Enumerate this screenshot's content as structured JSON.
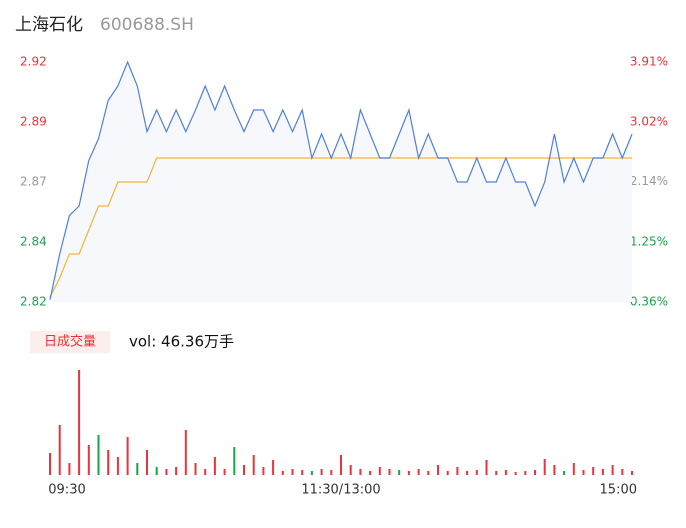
{
  "chart_data": [
    {
      "type": "line",
      "title": "上海石化",
      "subtitle": "600688.SH",
      "x": [
        0,
        4,
        8,
        12,
        16,
        20,
        24,
        28,
        32,
        36,
        40,
        44,
        48,
        52,
        56,
        60,
        64,
        68,
        72,
        76,
        80,
        84,
        88,
        92,
        96,
        100,
        104,
        108,
        112,
        116,
        120,
        124,
        128,
        132,
        136,
        140,
        144,
        148,
        152,
        156,
        160,
        164,
        168,
        172,
        176,
        180,
        184,
        188,
        192,
        196,
        200,
        204,
        208,
        212,
        216,
        220,
        224,
        228,
        232,
        236,
        240
      ],
      "xlim": [
        0,
        240
      ],
      "series": [
        {
          "name": "price",
          "color": "#4f7fe0",
          "values": [
            2.821,
            2.84,
            2.856,
            2.86,
            2.879,
            2.888,
            2.904,
            2.91,
            2.92,
            2.91,
            2.891,
            2.9,
            2.891,
            2.9,
            2.891,
            2.9,
            2.91,
            2.9,
            2.91,
            2.9,
            2.891,
            2.9,
            2.9,
            2.891,
            2.9,
            2.891,
            2.9,
            2.88,
            2.89,
            2.88,
            2.89,
            2.88,
            2.9,
            2.89,
            2.88,
            2.88,
            2.89,
            2.9,
            2.88,
            2.89,
            2.88,
            2.88,
            2.87,
            2.87,
            2.88,
            2.87,
            2.87,
            2.88,
            2.87,
            2.87,
            2.86,
            2.87,
            2.89,
            2.87,
            2.88,
            2.87,
            2.88,
            2.88,
            2.89,
            2.88,
            2.89
          ]
        },
        {
          "name": "average",
          "color": "#f2b53a",
          "values": [
            2.822,
            2.83,
            2.84,
            2.84,
            2.85,
            2.86,
            2.86,
            2.87,
            2.87,
            2.87,
            2.87,
            2.88,
            2.88,
            2.88,
            2.88,
            2.88,
            2.88,
            2.88,
            2.88,
            2.88,
            2.88,
            2.88,
            2.88,
            2.88,
            2.88,
            2.88,
            2.88,
            2.88,
            2.88,
            2.88,
            2.88,
            2.88,
            2.88,
            2.88,
            2.88,
            2.88,
            2.88,
            2.88,
            2.88,
            2.88,
            2.88,
            2.88,
            2.88,
            2.88,
            2.88,
            2.88,
            2.88,
            2.88,
            2.88,
            2.88,
            2.88,
            2.88,
            2.88,
            2.88,
            2.88,
            2.88,
            2.88,
            2.88,
            2.88,
            2.88,
            2.88
          ]
        }
      ],
      "ylim": [
        2.82,
        2.92
      ],
      "yticks": [
        {
          "value": 2.92,
          "label": "2.92"
        },
        {
          "value": 2.895,
          "label": "2.89"
        },
        {
          "value": 2.87,
          "label": "2.87"
        },
        {
          "value": 2.845,
          "label": "2.84"
        },
        {
          "value": 2.82,
          "label": "2.82"
        }
      ],
      "y2lim": [
        0.36,
        3.91
      ],
      "y2ticks": [
        {
          "value": 3.91,
          "label": "3.91%"
        },
        {
          "value": 3.02,
          "label": "3.02%"
        },
        {
          "value": 2.14,
          "label": "2.14%"
        },
        {
          "value": 1.25,
          "label": "1.25%"
        },
        {
          "value": 0.36,
          "label": "0.36%"
        }
      ],
      "tick_colors": [
        "#e8343a",
        "#e8343a",
        "#999999",
        "#1aa34a",
        "#1aa34a"
      ],
      "fill": "#f6f8fc"
    },
    {
      "type": "bar",
      "badge": "日成交量",
      "volume_label": "vol: 46.36万手",
      "values": [
        22,
        50,
        12,
        105,
        30,
        40,
        25,
        18,
        38,
        12,
        25,
        8,
        6,
        8,
        45,
        12,
        6,
        18,
        6,
        28,
        10,
        20,
        8,
        15,
        4,
        6,
        5,
        4,
        6,
        5,
        20,
        10,
        6,
        4,
        8,
        6,
        5,
        4,
        6,
        4,
        10,
        4,
        8,
        4,
        5,
        15,
        4,
        5,
        3,
        4,
        5,
        16,
        10,
        4,
        12,
        5,
        8,
        6,
        10,
        6,
        4
      ],
      "ylim": [
        0,
        105
      ],
      "color": "#e8343a",
      "down_color": "#1aa34a",
      "down": [
        5,
        9,
        11,
        19,
        27,
        36,
        53
      ],
      "xticks": [
        {
          "value": 0,
          "label": "09:30"
        },
        {
          "value": 120,
          "label": "11:30/13:00"
        },
        {
          "value": 240,
          "label": "15:00"
        }
      ]
    }
  ]
}
